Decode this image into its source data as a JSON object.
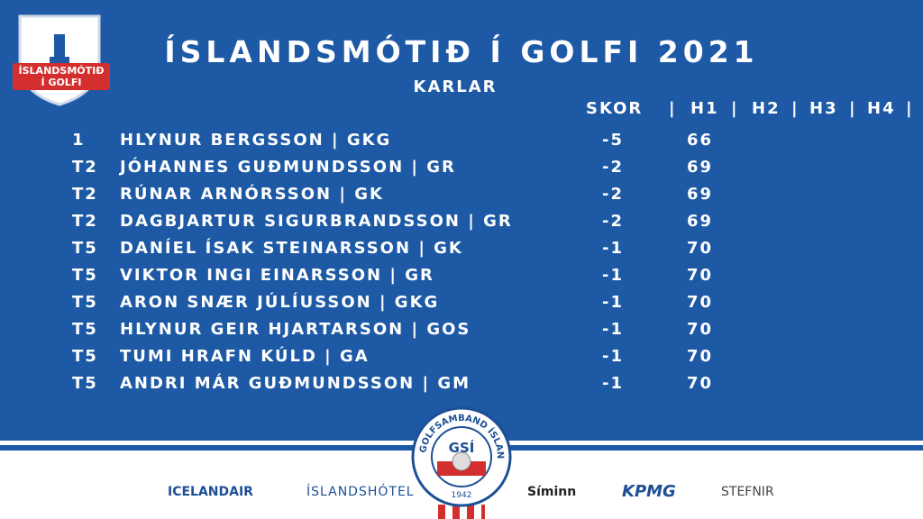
{
  "logo": {
    "line1": "ÍSLANDSMÓTIÐ",
    "line2": "Í GOLFI"
  },
  "header": {
    "title": "ÍSLANDSMÓTIÐ Í GOLFI 2021",
    "subtitle": "KARLAR"
  },
  "table": {
    "columns": [
      "SKOR",
      "|",
      "H1",
      "|",
      "H2",
      "|",
      "H3",
      "|",
      "H4",
      "|"
    ],
    "rows": [
      {
        "pos": "1",
        "name": "HLYNUR BERGSSON | GKG",
        "score": -5,
        "h1": 66
      },
      {
        "pos": "T2",
        "name": "JÓHANNES GUÐMUNDSSON | GR",
        "score": -2,
        "h1": 69
      },
      {
        "pos": "T2",
        "name": "RÚNAR ARNÓRSSON | GK",
        "score": -2,
        "h1": 69
      },
      {
        "pos": "T2",
        "name": "DAGBJARTUR SIGURBRANDSSON | GR",
        "score": -2,
        "h1": 69
      },
      {
        "pos": "T5",
        "name": "DANÍEL ÍSAK STEINARSSON | GK",
        "score": -1,
        "h1": 70
      },
      {
        "pos": "T5",
        "name": "VIKTOR INGI EINARSSON | GR",
        "score": -1,
        "h1": 70
      },
      {
        "pos": "T5",
        "name": "ARON SNÆR JÚLÍUSSON | GKG",
        "score": -1,
        "h1": 70
      },
      {
        "pos": "T5",
        "name": "HLYNUR GEIR HJARTARSON | GOS",
        "score": -1,
        "h1": 70
      },
      {
        "pos": "T5",
        "name": "TUMI HRAFN KÚLD | GA",
        "score": -1,
        "h1": 70
      },
      {
        "pos": "T5",
        "name": "ANDRI MÁR GUÐMUNDSSON | GM",
        "score": -1,
        "h1": 70
      }
    ]
  },
  "badge": {
    "ring": "GOLFSAMBAND ÍSLANDS",
    "initials": "GSÍ",
    "year": "1942"
  },
  "sponsors": [
    "ICELANDAIR",
    "ÍSLANDSHÓTEL",
    "Síminn",
    "KPMG",
    "STEFNIR"
  ]
}
